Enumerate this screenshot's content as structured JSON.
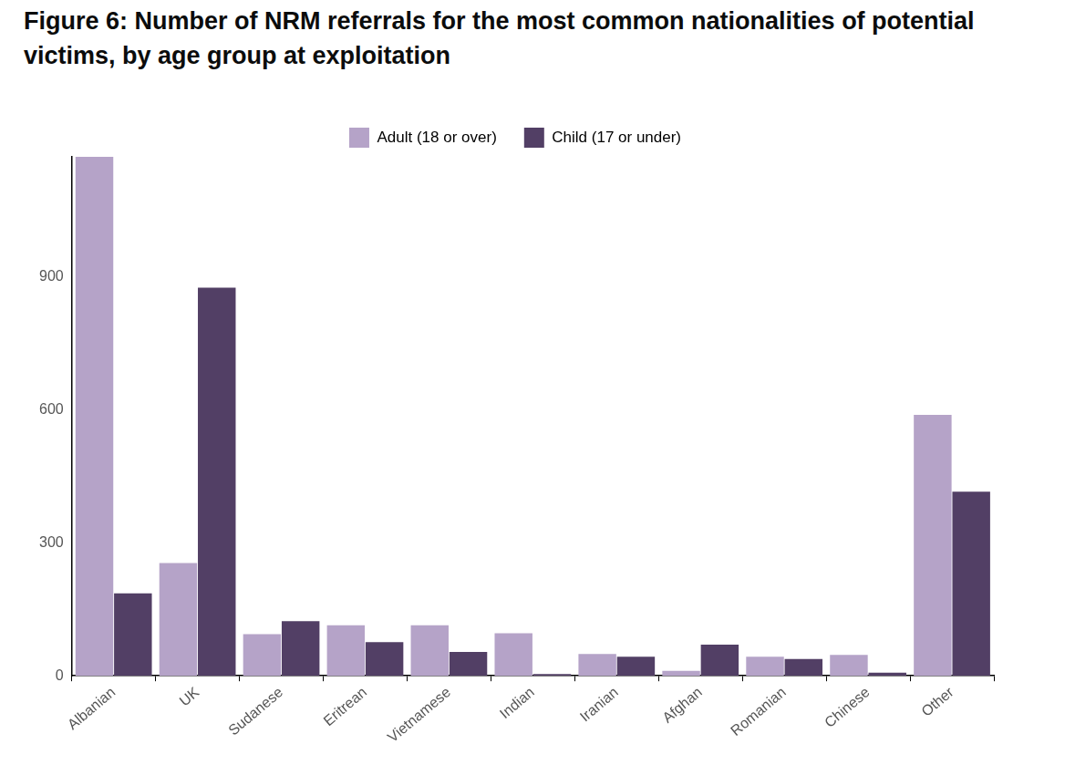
{
  "chart_data": {
    "type": "bar",
    "title": "Figure 6: Number of NRM referrals for the most common nationalities of potential victims, by age group at exploitation",
    "categories": [
      "Albanian",
      "UK",
      "Sudanese",
      "Eritrean",
      "Vietnamese",
      "Indian",
      "Iranian",
      "Afghan",
      "Romanian",
      "Chinese",
      "Other"
    ],
    "series": [
      {
        "name": "Adult (18 or over)",
        "color": "#b5a3c8",
        "values": [
          1170,
          254,
          94,
          114,
          114,
          96,
          49,
          11,
          43,
          47,
          588
        ]
      },
      {
        "name": "Child (17 or under)",
        "color": "#523f65",
        "values": [
          186,
          875,
          123,
          76,
          54,
          4,
          43,
          70,
          38,
          7,
          415
        ]
      }
    ],
    "ylim": [
      0,
      1170
    ],
    "yticks": [
      0,
      300,
      600,
      900
    ],
    "grid": false,
    "legend": "top"
  }
}
